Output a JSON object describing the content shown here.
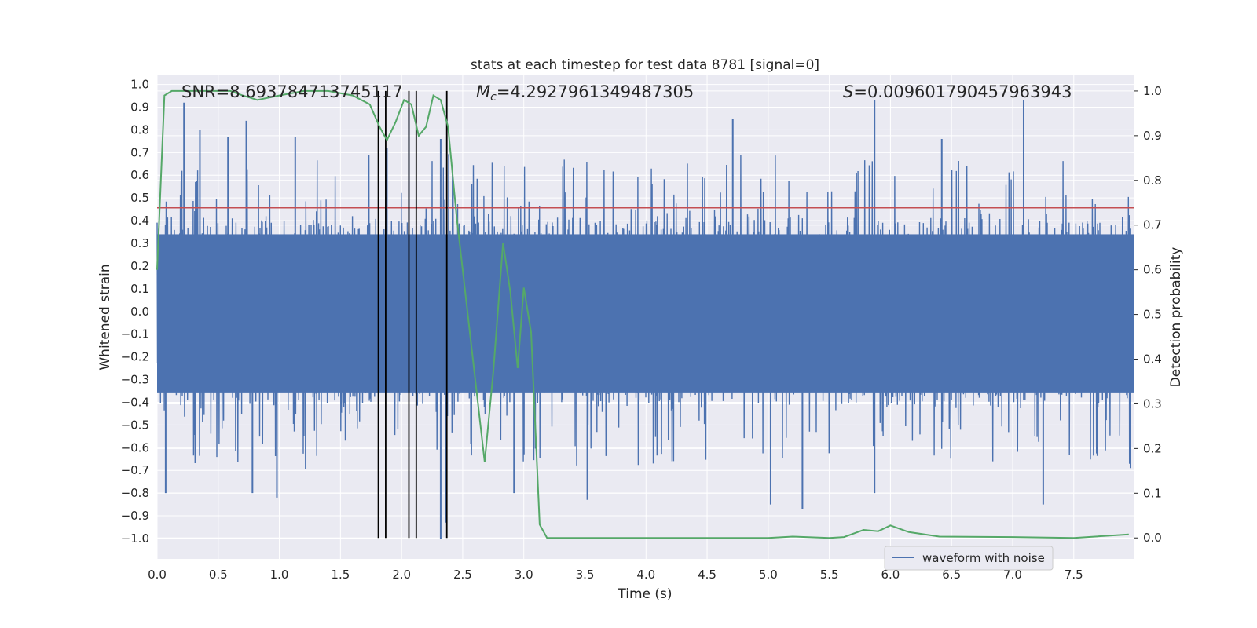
{
  "chart_data": {
    "type": "line",
    "title": "stats at each timestep for test data 8781 [signal=0]",
    "xlabel": "Time (s)",
    "ylabel_left": "Whitened strain",
    "ylabel_right": "Detection probability",
    "xlim": [
      0,
      7.99
    ],
    "ylim_left": [
      -1.09,
      1.04
    ],
    "ylim_right": [
      -0.047,
      1.035
    ],
    "x_ticks": [
      "0.0",
      "0.5",
      "1.0",
      "1.5",
      "2.0",
      "2.5",
      "3.0",
      "3.5",
      "4.0",
      "4.5",
      "5.0",
      "5.5",
      "6.0",
      "6.5",
      "7.0",
      "7.5"
    ],
    "y_ticks_left": [
      "1.0",
      "0.9",
      "0.8",
      "0.7",
      "0.6",
      "0.5",
      "0.4",
      "0.3",
      "0.2",
      "0.1",
      "0.0",
      "-0.1",
      "-0.2",
      "-0.3",
      "-0.4",
      "-0.5",
      "-0.6",
      "-0.7",
      "-0.8",
      "-0.9",
      "-1.0"
    ],
    "y_ticks_right": [
      "1.0",
      "0.9",
      "0.8",
      "0.7",
      "0.6",
      "0.5",
      "0.4",
      "0.3",
      "0.2",
      "0.1",
      "0.0"
    ],
    "grid": true,
    "legend": {
      "position": "bottom-right",
      "entries": [
        "waveform with noise"
      ]
    },
    "annotations": {
      "snr": "SNR=8.693784713745117",
      "mc_symbol": "M",
      "mc_sub": "c",
      "mc_value": "=4.2927961349487305",
      "s_symbol": "S",
      "s_value": "=0.009601790457963943"
    },
    "series": [
      {
        "name": "waveform with noise",
        "axis": "left",
        "color": "#4c72b0",
        "description_ref": "noisy whitened strain, dense band roughly -0.4..0.4 with spikes",
        "spikes": [
          {
            "x": 0.22,
            "y": 0.92
          },
          {
            "x": 0.35,
            "y": 0.8
          },
          {
            "x": 0.58,
            "y": 0.77
          },
          {
            "x": 0.73,
            "y": 0.84
          },
          {
            "x": 1.13,
            "y": 0.77
          },
          {
            "x": 1.88,
            "y": 0.72
          },
          {
            "x": 2.06,
            "y": 0.9
          },
          {
            "x": 2.32,
            "y": 0.76
          },
          {
            "x": 4.71,
            "y": 0.85
          },
          {
            "x": 5.87,
            "y": 0.93
          },
          {
            "x": 6.42,
            "y": 0.76
          },
          {
            "x": 7.09,
            "y": 0.93
          },
          {
            "x": 0.07,
            "y": -0.8
          },
          {
            "x": 0.78,
            "y": -0.8
          },
          {
            "x": 0.98,
            "y": -0.82
          },
          {
            "x": 2.32,
            "y": -1.0
          },
          {
            "x": 2.36,
            "y": -0.93
          },
          {
            "x": 2.92,
            "y": -0.8
          },
          {
            "x": 3.52,
            "y": -0.83
          },
          {
            "x": 5.02,
            "y": -0.85
          },
          {
            "x": 5.28,
            "y": -0.87
          },
          {
            "x": 5.87,
            "y": -0.8
          },
          {
            "x": 7.25,
            "y": -0.85
          }
        ],
        "envelope_upper": 0.4,
        "envelope_lower": -0.42
      },
      {
        "name": "",
        "axis": "right",
        "color": "#55a868",
        "x": [
          0.0,
          0.06,
          0.12,
          0.3,
          0.6,
          0.7,
          0.82,
          1.0,
          1.2,
          1.4,
          1.6,
          1.74,
          1.82,
          1.88,
          1.95,
          2.02,
          2.08,
          2.14,
          2.2,
          2.26,
          2.32,
          2.38,
          2.45,
          2.55,
          2.68,
          2.75,
          2.83,
          2.89,
          2.95,
          3.0,
          3.06,
          3.13,
          3.19,
          3.5,
          4.0,
          4.5,
          5.0,
          5.2,
          5.5,
          5.62,
          5.72,
          5.78,
          5.9,
          6.0,
          6.15,
          6.4,
          7.0,
          7.5,
          7.95
        ],
        "y": [
          0.6,
          0.99,
          1.0,
          1.0,
          1.0,
          0.99,
          0.98,
          0.99,
          1.0,
          1.0,
          0.99,
          0.97,
          0.92,
          0.89,
          0.93,
          0.98,
          0.97,
          0.9,
          0.92,
          0.99,
          0.98,
          0.92,
          0.72,
          0.48,
          0.17,
          0.37,
          0.66,
          0.55,
          0.38,
          0.56,
          0.46,
          0.03,
          0.0,
          0.0,
          0.0,
          0.0,
          0.0,
          0.003,
          0.0,
          0.002,
          0.012,
          0.018,
          0.015,
          0.028,
          0.013,
          0.003,
          0.002,
          0.0,
          0.008
        ]
      }
    ],
    "threshold_line": {
      "y": 0.7385,
      "color": "#c44e52"
    },
    "vertical_lines": [
      1.81,
      1.87,
      2.06,
      2.12,
      2.37
    ]
  }
}
